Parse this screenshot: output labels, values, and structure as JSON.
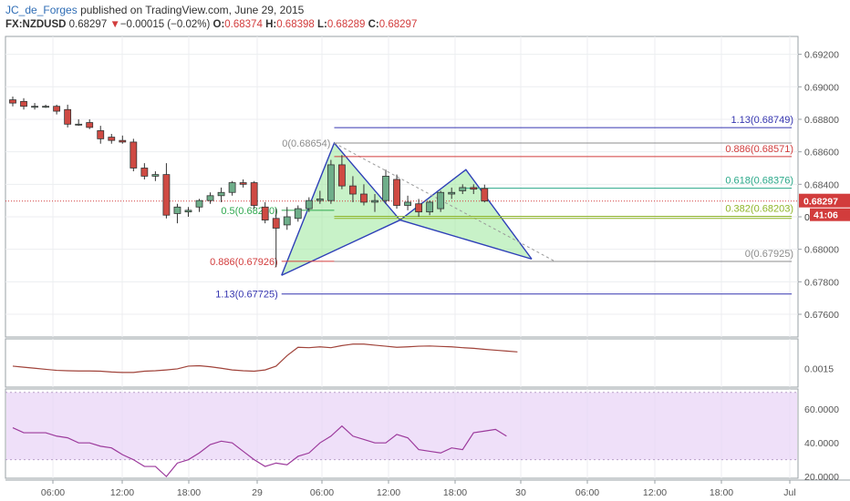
{
  "header": {
    "author": "JC_de_Forges",
    "published_text": "published on TradingView.com, June 29, 2015",
    "symbol": "FX:NZDUSD",
    "last": "0.68297",
    "arrow": "▼",
    "change": "−0.00015 (−0.02%)",
    "open_label": "O:",
    "open": "0.68374",
    "high_label": "H:",
    "high": "0.68398",
    "low_label": "L:",
    "low": "0.68289",
    "close_label": "C:",
    "close": "0.68297"
  },
  "chart_data": [
    {
      "type": "candlestick",
      "symbol": "FX:NZDUSD",
      "ylim": [
        0.6746,
        0.6931
      ],
      "y_ticks": [
        "0.69200",
        "0.69000",
        "0.68800",
        "0.68600",
        "0.68400",
        "0.68200",
        "0.68000",
        "0.67800",
        "0.67600"
      ],
      "x_ticks": [
        "06:00",
        "12:00",
        "18:00",
        "29",
        "06:00",
        "12:00",
        "18:00",
        "30",
        "06:00",
        "12:00",
        "18:00",
        "Jul"
      ],
      "candles": [
        {
          "o": 0.6892,
          "h": 0.6894,
          "l": 0.6888,
          "c": 0.689
        },
        {
          "o": 0.6891,
          "h": 0.6893,
          "l": 0.6886,
          "c": 0.6888
        },
        {
          "o": 0.6888,
          "h": 0.689,
          "l": 0.6886,
          "c": 0.6888
        },
        {
          "o": 0.6888,
          "h": 0.6889,
          "l": 0.6887,
          "c": 0.6888
        },
        {
          "o": 0.6888,
          "h": 0.6889,
          "l": 0.6883,
          "c": 0.6885
        },
        {
          "o": 0.6886,
          "h": 0.6889,
          "l": 0.6875,
          "c": 0.6877
        },
        {
          "o": 0.6877,
          "h": 0.688,
          "l": 0.6876,
          "c": 0.6877
        },
        {
          "o": 0.6878,
          "h": 0.688,
          "l": 0.6874,
          "c": 0.6875
        },
        {
          "o": 0.6873,
          "h": 0.6876,
          "l": 0.6865,
          "c": 0.6868
        },
        {
          "o": 0.6869,
          "h": 0.6871,
          "l": 0.6865,
          "c": 0.6867
        },
        {
          "o": 0.6867,
          "h": 0.687,
          "l": 0.6865,
          "c": 0.6866
        },
        {
          "o": 0.6866,
          "h": 0.6868,
          "l": 0.6848,
          "c": 0.685
        },
        {
          "o": 0.685,
          "h": 0.6853,
          "l": 0.6843,
          "c": 0.6845
        },
        {
          "o": 0.6845,
          "h": 0.6848,
          "l": 0.6842,
          "c": 0.6846
        },
        {
          "o": 0.6846,
          "h": 0.6853,
          "l": 0.6819,
          "c": 0.6821
        },
        {
          "o": 0.6822,
          "h": 0.6828,
          "l": 0.6816,
          "c": 0.6826
        },
        {
          "o": 0.6823,
          "h": 0.6826,
          "l": 0.682,
          "c": 0.6824
        },
        {
          "o": 0.6826,
          "h": 0.6831,
          "l": 0.6823,
          "c": 0.683
        },
        {
          "o": 0.683,
          "h": 0.6835,
          "l": 0.6828,
          "c": 0.6833
        },
        {
          "o": 0.6833,
          "h": 0.6838,
          "l": 0.6829,
          "c": 0.6835
        },
        {
          "o": 0.6835,
          "h": 0.6842,
          "l": 0.6833,
          "c": 0.6841
        },
        {
          "o": 0.6841,
          "h": 0.6843,
          "l": 0.6838,
          "c": 0.684
        },
        {
          "o": 0.6841,
          "h": 0.6842,
          "l": 0.6825,
          "c": 0.6827
        },
        {
          "o": 0.6826,
          "h": 0.6829,
          "l": 0.6816,
          "c": 0.6818
        },
        {
          "o": 0.6819,
          "h": 0.6825,
          "l": 0.6789,
          "c": 0.6813
        },
        {
          "o": 0.6815,
          "h": 0.6826,
          "l": 0.6812,
          "c": 0.682
        },
        {
          "o": 0.6819,
          "h": 0.6827,
          "l": 0.6817,
          "c": 0.6825
        },
        {
          "o": 0.6825,
          "h": 0.6832,
          "l": 0.6823,
          "c": 0.683
        },
        {
          "o": 0.683,
          "h": 0.6836,
          "l": 0.6828,
          "c": 0.6831
        },
        {
          "o": 0.683,
          "h": 0.6855,
          "l": 0.6828,
          "c": 0.6852
        },
        {
          "o": 0.6852,
          "h": 0.6858,
          "l": 0.6837,
          "c": 0.6839
        },
        {
          "o": 0.6839,
          "h": 0.6845,
          "l": 0.6829,
          "c": 0.6834
        },
        {
          "o": 0.6834,
          "h": 0.684,
          "l": 0.6827,
          "c": 0.6829
        },
        {
          "o": 0.6829,
          "h": 0.6834,
          "l": 0.6823,
          "c": 0.683
        },
        {
          "o": 0.683,
          "h": 0.6849,
          "l": 0.6828,
          "c": 0.6845
        },
        {
          "o": 0.6843,
          "h": 0.6846,
          "l": 0.6825,
          "c": 0.6827
        },
        {
          "o": 0.6827,
          "h": 0.6833,
          "l": 0.6824,
          "c": 0.6829
        },
        {
          "o": 0.6828,
          "h": 0.6831,
          "l": 0.682,
          "c": 0.6823
        },
        {
          "o": 0.6823,
          "h": 0.683,
          "l": 0.6821,
          "c": 0.6829
        },
        {
          "o": 0.6825,
          "h": 0.6836,
          "l": 0.6823,
          "c": 0.6835
        },
        {
          "o": 0.6834,
          "h": 0.6838,
          "l": 0.6831,
          "c": 0.6835
        },
        {
          "o": 0.6836,
          "h": 0.684,
          "l": 0.6834,
          "c": 0.6838
        },
        {
          "o": 0.6838,
          "h": 0.684,
          "l": 0.6834,
          "c": 0.6837
        },
        {
          "o": 0.68374,
          "h": 0.68398,
          "l": 0.68289,
          "c": 0.68297
        }
      ],
      "pattern": {
        "points": [
          {
            "t": 24.5,
            "p": 0.6784
          },
          {
            "t": 29.3,
            "p": 0.68654
          },
          {
            "t": 35.3,
            "p": 0.6818
          },
          {
            "t": 41.3,
            "p": 0.6849
          },
          {
            "t": 47.3,
            "p": 0.6794
          }
        ],
        "dashed_from": {
          "t": 29.3,
          "p": 0.68654
        },
        "dashed_to": {
          "t": 49.3,
          "p": 0.6793
        }
      },
      "fib_left": [
        {
          "label": "0(0.68654)",
          "value": 0.68654,
          "color": "#8c8c8c",
          "t_start": 29.3,
          "t_end": 71
        },
        {
          "label": "0.5(0.68240)",
          "value": 0.6824,
          "color": "#2fa84f",
          "t_start": 24.5,
          "t_end": 29.3
        },
        {
          "label": "0.886(0.67926)",
          "value": 0.67926,
          "color": "#d23c3c",
          "t_start": 24.5,
          "t_end": 29.3
        },
        {
          "label": "1.13(0.67725)",
          "value": 0.67725,
          "color": "#3636b0",
          "t_start": 24.5,
          "t_end": 71
        }
      ],
      "fib_right": [
        {
          "label": "1.13(0.68749)",
          "value": 0.68749,
          "color": "#3636b0",
          "t_start": 29.3,
          "t_end": 71
        },
        {
          "label": "0.886(0.68571)",
          "value": 0.68571,
          "color": "#d23c3c",
          "t_start": 29.3,
          "t_end": 71
        },
        {
          "label": "0.618(0.68376)",
          "value": 0.68376,
          "color": "#2aa889",
          "t_start": 41.3,
          "t_end": 71
        },
        {
          "label": "0.382(0.68203)",
          "value": 0.68203,
          "color": "#8fb62a",
          "t_start": 29.3,
          "t_end": 71
        },
        {
          "label": "0(0.67925)",
          "value": 0.67925,
          "color": "#8c8c8c",
          "t_start": 29.3,
          "t_end": 71
        }
      ],
      "extra_lines": [
        {
          "value": 0.6819,
          "color": "#8fb62a",
          "t_start": 29.3,
          "t_end": 71
        }
      ],
      "last_price": {
        "label": "0.68297",
        "value": 0.68297,
        "color": "#d23c3c"
      },
      "countdown": {
        "label": "41:06",
        "color": "#d23c3c"
      },
      "partial_tick_label": "0."
    },
    {
      "type": "line",
      "name_hidden": true,
      "y_ticks": [
        "0.0015"
      ],
      "color": "#a0433a",
      "values": [
        0.0016,
        0.00155,
        0.0015,
        0.00145,
        0.0014,
        0.00138,
        0.00137,
        0.00137,
        0.00136,
        0.00132,
        0.0013,
        0.0013,
        0.00136,
        0.00138,
        0.00142,
        0.00147,
        0.0016,
        0.00162,
        0.00157,
        0.0015,
        0.00142,
        0.00138,
        0.00136,
        0.00142,
        0.0016,
        0.0021,
        0.0025,
        0.00248,
        0.00252,
        0.00248,
        0.00258,
        0.00265,
        0.00265,
        0.0026,
        0.00255,
        0.0025,
        0.00252,
        0.00255,
        0.00256,
        0.00254,
        0.00252,
        0.00248,
        0.00245,
        0.0024,
        0.00236,
        0.00232,
        0.00228
      ],
      "ylim": [
        0.0006,
        0.0029
      ]
    },
    {
      "type": "line",
      "y_ticks": [
        "60.0000",
        "40.0000",
        "20.0000"
      ],
      "upper_band": 70,
      "lower_band": 30,
      "band_color": "#e9d5f7",
      "color": "#9c3a9c",
      "values": [
        49,
        46,
        46,
        46,
        44,
        43,
        40,
        40,
        38,
        37,
        33,
        30,
        26,
        26,
        20,
        28,
        30,
        34,
        39,
        41,
        40,
        35,
        30,
        26,
        28,
        27,
        32,
        34,
        40,
        44,
        50,
        44,
        42,
        40,
        40,
        45,
        43,
        36,
        35,
        34,
        37,
        36,
        46,
        47,
        48,
        44
      ],
      "ylim": [
        19,
        72
      ]
    }
  ]
}
